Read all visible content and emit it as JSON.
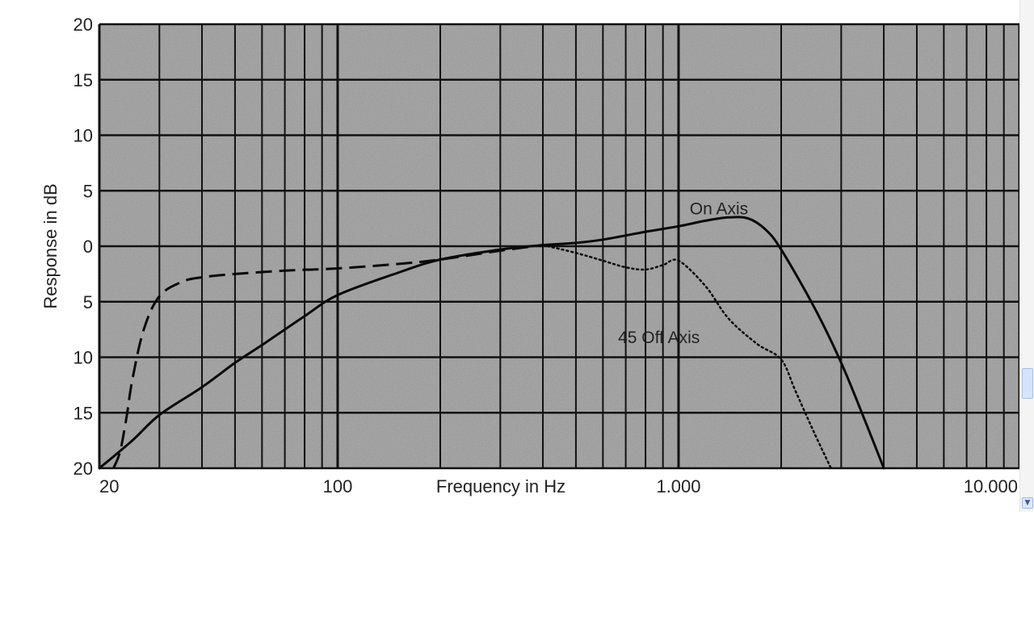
{
  "chart_data": {
    "type": "line",
    "title": "",
    "xlabel": "Frequency in Hz",
    "ylabel": "Response in dB",
    "xscale": "log",
    "xlim": [
      20,
      10000
    ],
    "ylim": [
      -20,
      20
    ],
    "grid": true,
    "x_tick_labels": [
      {
        "value": 20,
        "label": "20"
      },
      {
        "value": 100,
        "label": "100"
      },
      {
        "value": 1000,
        "label": "1.000"
      },
      {
        "value": 10000,
        "label": "10.000"
      }
    ],
    "y_tick_labels": [
      {
        "value": 20,
        "label": "20"
      },
      {
        "value": 15,
        "label": "15"
      },
      {
        "value": 10,
        "label": "10"
      },
      {
        "value": 5,
        "label": "5"
      },
      {
        "value": 0,
        "label": "0"
      },
      {
        "value": -5,
        "label": "5"
      },
      {
        "value": -10,
        "label": "10"
      },
      {
        "value": -15,
        "label": "15"
      },
      {
        "value": -20,
        "label": "20"
      }
    ],
    "series": [
      {
        "name": "On Axis",
        "style": "solid",
        "x": [
          20,
          25,
          30,
          40,
          50,
          60,
          80,
          100,
          150,
          200,
          300,
          400,
          500,
          600,
          800,
          1000,
          1200,
          1400,
          1600,
          1800,
          2000,
          2500,
          3000,
          3500,
          4000
        ],
        "y": [
          -20,
          -17.5,
          -15.2,
          -12.7,
          -10.5,
          -8.9,
          -6.3,
          -4.4,
          -2.4,
          -1.2,
          -0.3,
          0.1,
          0.3,
          0.6,
          1.3,
          1.8,
          2.3,
          2.6,
          2.5,
          1.5,
          -0.3,
          -5.5,
          -10.5,
          -15.5,
          -20
        ]
      },
      {
        "name": "45° Off Axis",
        "style": "dashed",
        "x": [
          22,
          23,
          24,
          25,
          27,
          30,
          35,
          40,
          50,
          70,
          100,
          150,
          200,
          300,
          400
        ],
        "y": [
          -20,
          -18.5,
          -15.5,
          -12,
          -7.5,
          -4.5,
          -3.2,
          -2.8,
          -2.5,
          -2.2,
          -2.0,
          -1.6,
          -1.2,
          -0.4,
          0.1
        ]
      },
      {
        "name": "45° Off Axis",
        "style": "dotted",
        "x": [
          400,
          500,
          600,
          700,
          800,
          900,
          1000,
          1200,
          1400,
          1700,
          2000,
          2200,
          2500,
          2800
        ],
        "y": [
          0.1,
          -0.6,
          -1.3,
          -1.9,
          -2.1,
          -1.7,
          -1.3,
          -3.6,
          -6.5,
          -8.8,
          -10.2,
          -13.0,
          -16.8,
          -20
        ]
      }
    ],
    "annotations": [
      {
        "text": "On Axis",
        "x": 1350,
        "y": 3.4
      },
      {
        "text": "45  Off Axis",
        "x": 900,
        "y": -8.2
      }
    ]
  },
  "colors": {
    "plot_background": "#9c9c9c",
    "grid_line": "#111111",
    "curve": "#0a0a0a",
    "page_background": "#ffffff"
  },
  "ui": {
    "scrollbar_arrow_icon": "chevron-down-icon"
  }
}
